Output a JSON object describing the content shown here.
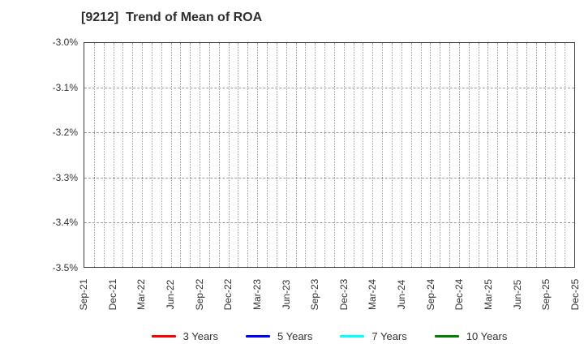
{
  "chart_data": {
    "type": "line",
    "title": "[9212]  Trend of Mean of ROA",
    "xlabel": "",
    "ylabel": "",
    "x_tick_labels": [
      "Sep-21",
      "Dec-21",
      "Mar-22",
      "Jun-22",
      "Sep-22",
      "Dec-22",
      "Mar-23",
      "Jun-23",
      "Sep-23",
      "Dec-23",
      "Mar-24",
      "Jun-24",
      "Sep-24",
      "Dec-24",
      "Mar-25",
      "Jun-25",
      "Sep-25",
      "Dec-25"
    ],
    "y_tick_labels": [
      "-3.0%",
      "-3.1%",
      "-3.2%",
      "-3.3%",
      "-3.4%",
      "-3.5%"
    ],
    "ylim": [
      -3.5,
      -3.0
    ],
    "y_unit": "percent",
    "grid": true,
    "x_minor_divisions_per_tick": 3,
    "legend_position": "bottom",
    "plot_empty": true,
    "series": [
      {
        "name": "3 Years",
        "color": "#ff0000",
        "values": []
      },
      {
        "name": "5 Years",
        "color": "#0000ff",
        "values": []
      },
      {
        "name": "7 Years",
        "color": "#00ffff",
        "values": []
      },
      {
        "name": "10 Years",
        "color": "#008000",
        "values": []
      }
    ]
  }
}
